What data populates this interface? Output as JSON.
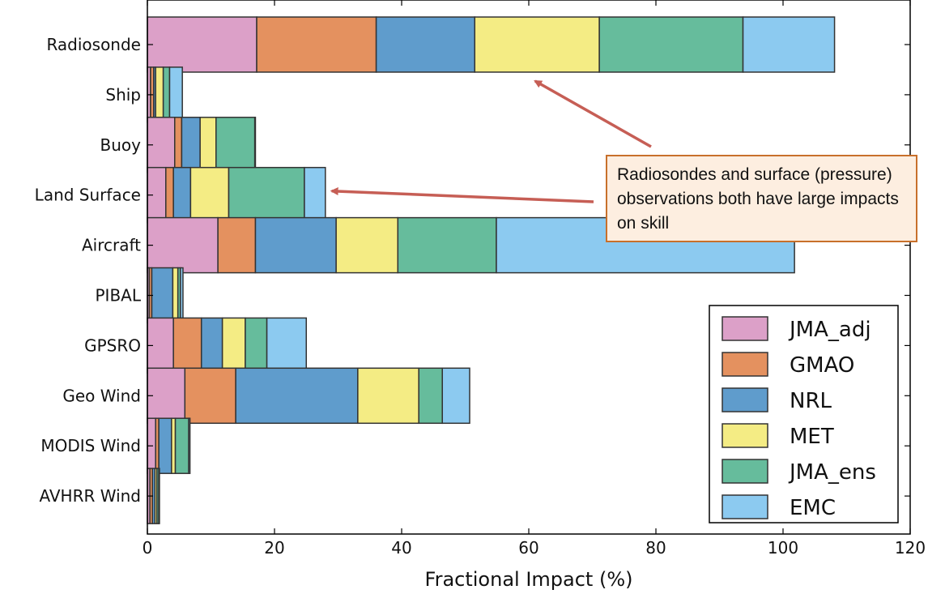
{
  "chart_data": {
    "type": "bar",
    "orientation": "horizontal",
    "stacked": true,
    "categories": [
      "Radiosonde",
      "Ship",
      "Buoy",
      "Land Surface",
      "Aircraft",
      "PIBAL",
      "GPSRO",
      "Geo Wind",
      "MODIS Wind",
      "AVHRR Wind"
    ],
    "series": [
      {
        "name": "JMA_adj",
        "color": "#dca0c8",
        "values": [
          17.2,
          0.5,
          4.3,
          2.9,
          11.1,
          0.3,
          4.1,
          5.9,
          1.3,
          0.4
        ]
      },
      {
        "name": "GMAO",
        "color": "#e4915f",
        "values": [
          18.8,
          0.5,
          1.1,
          1.2,
          5.9,
          0.4,
          4.4,
          8.0,
          0.5,
          0.4
        ]
      },
      {
        "name": "NRL",
        "color": "#5f9ccc",
        "values": [
          15.5,
          0.3,
          2.9,
          2.7,
          12.7,
          3.3,
          3.3,
          19.2,
          2.0,
          0.4
        ]
      },
      {
        "name": "MET",
        "color": "#f4ec84",
        "values": [
          19.6,
          1.2,
          2.5,
          6.0,
          9.7,
          0.8,
          3.6,
          9.6,
          0.6,
          0.3
        ]
      },
      {
        "name": "JMA_ens",
        "color": "#66bc9c",
        "values": [
          22.6,
          1.0,
          6.1,
          11.9,
          15.5,
          0.4,
          3.4,
          3.7,
          2.1,
          0.3
        ]
      },
      {
        "name": "EMC",
        "color": "#8ccaf0",
        "values": [
          14.4,
          2.0,
          0.1,
          3.3,
          46.9,
          0.4,
          6.2,
          4.3,
          0.2,
          0.1
        ]
      }
    ],
    "xlabel": "Fractional Impact (%)",
    "ylabel": "",
    "title": "",
    "xlim": [
      0,
      120
    ],
    "xticks": [
      0,
      20,
      40,
      60,
      80,
      100,
      120
    ],
    "grid": false,
    "legend_position": "bottom-right",
    "annotations": [
      {
        "text": "Radiosondes and surface (pressure) observations both have large impacts on skill",
        "box_color": "#fdeee0",
        "border_color": "#c8702b",
        "arrow_color": "#c65e55",
        "arrow_targets": [
          {
            "category": "Radiosonde",
            "x": 61
          },
          {
            "category": "Land Surface",
            "x": 29
          }
        ]
      }
    ]
  }
}
